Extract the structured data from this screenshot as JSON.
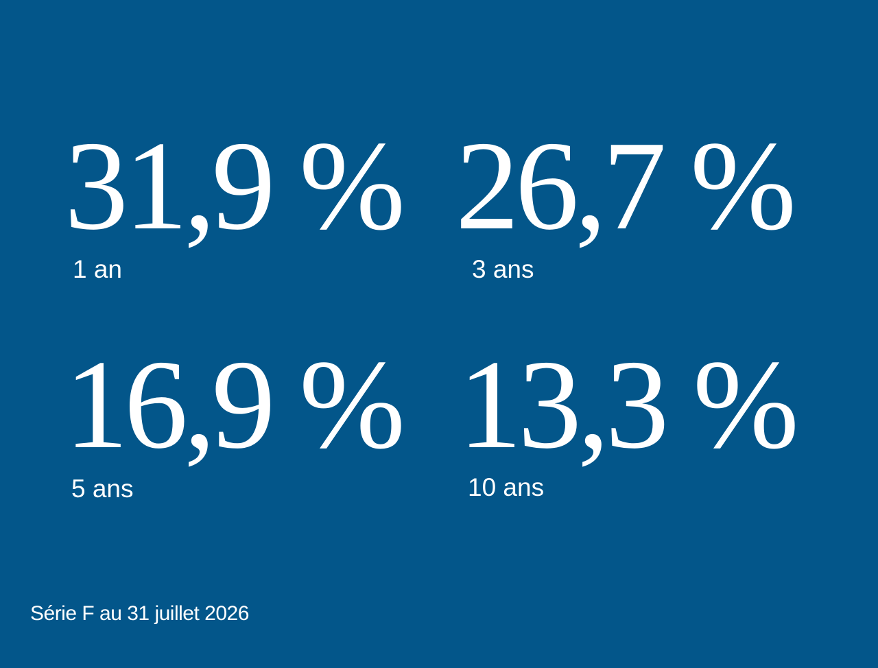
{
  "stats": [
    {
      "value": "31,9 %",
      "label": "1 an"
    },
    {
      "value": "26,7 %",
      "label": "3 ans"
    },
    {
      "value": "16,9 %",
      "label": "5 ans"
    },
    {
      "value": "13,3 %",
      "label": "10 ans"
    }
  ],
  "footnote": "Série F au 31 juillet 2026"
}
